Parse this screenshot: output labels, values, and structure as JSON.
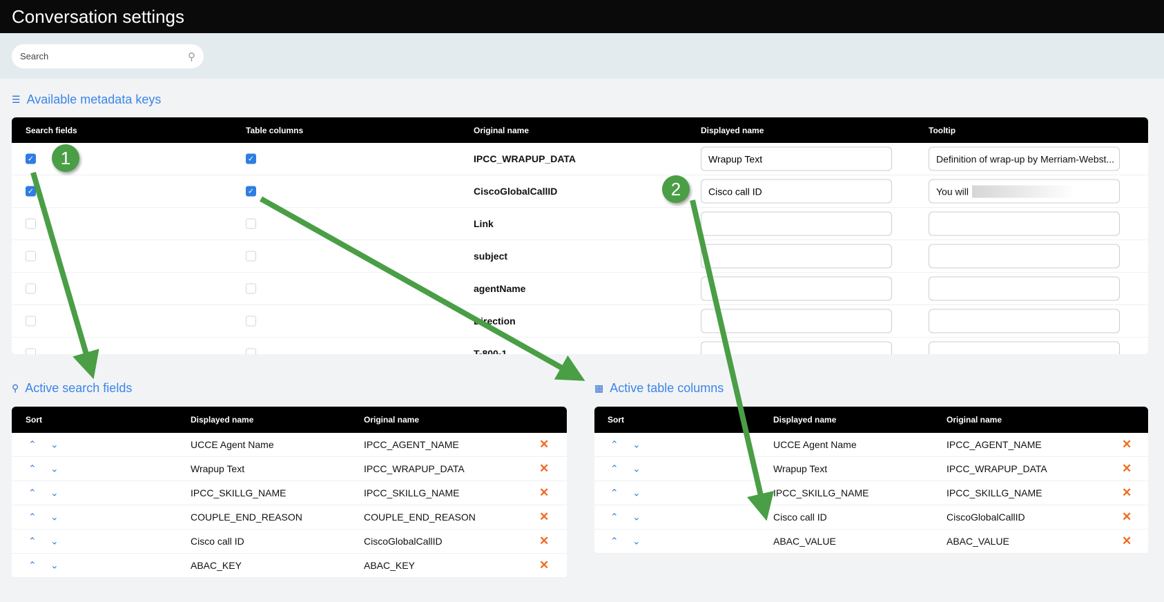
{
  "header": {
    "title": "Conversation settings"
  },
  "search": {
    "placeholder": "Search",
    "icon": "search-icon"
  },
  "metadata": {
    "title": "Available metadata keys",
    "columns": [
      "Search fields",
      "Table columns",
      "Original name",
      "Displayed name",
      "Tooltip"
    ],
    "rows": [
      {
        "search": true,
        "table": true,
        "original": "IPCC_WRAPUP_DATA",
        "displayed": "Wrapup Text",
        "tooltip": "Definition of wrap-up by Merriam-Webst..."
      },
      {
        "search": true,
        "table": true,
        "original": "CiscoGlobalCallID",
        "displayed": "Cisco call ID",
        "tooltip": "You will"
      },
      {
        "search": false,
        "table": false,
        "original": "Link",
        "displayed": "",
        "tooltip": ""
      },
      {
        "search": false,
        "table": false,
        "original": "subject",
        "displayed": "",
        "tooltip": ""
      },
      {
        "search": false,
        "table": false,
        "original": "agentName",
        "displayed": "",
        "tooltip": ""
      },
      {
        "search": false,
        "table": false,
        "original": "Direction",
        "displayed": "",
        "tooltip": ""
      },
      {
        "search": false,
        "table": false,
        "original": "T-800-1",
        "displayed": "",
        "tooltip": ""
      }
    ]
  },
  "active_search": {
    "title": "Active search fields",
    "columns": [
      "Sort",
      "Displayed name",
      "Original name"
    ],
    "rows": [
      {
        "displayed": "UCCE Agent Name",
        "original": "IPCC_AGENT_NAME"
      },
      {
        "displayed": "Wrapup Text",
        "original": "IPCC_WRAPUP_DATA"
      },
      {
        "displayed": "IPCC_SKILLG_NAME",
        "original": "IPCC_SKILLG_NAME"
      },
      {
        "displayed": "COUPLE_END_REASON",
        "original": "COUPLE_END_REASON"
      },
      {
        "displayed": "Cisco call ID",
        "original": "CiscoGlobalCallID"
      },
      {
        "displayed": "ABAC_KEY",
        "original": "ABAC_KEY"
      }
    ]
  },
  "active_table": {
    "title": "Active table columns",
    "columns": [
      "Sort",
      "Displayed name",
      "Original name"
    ],
    "rows": [
      {
        "displayed": "UCCE Agent Name",
        "original": "IPCC_AGENT_NAME"
      },
      {
        "displayed": "Wrapup Text",
        "original": "IPCC_WRAPUP_DATA"
      },
      {
        "displayed": "IPCC_SKILLG_NAME",
        "original": "IPCC_SKILLG_NAME"
      },
      {
        "displayed": "Cisco call ID",
        "original": "CiscoGlobalCallID"
      },
      {
        "displayed": "ABAC_VALUE",
        "original": "ABAC_VALUE"
      }
    ]
  },
  "annotations": {
    "badge1": "1",
    "badge2": "2",
    "color": "#4a9e45"
  },
  "colors": {
    "accent": "#3a86e8",
    "remove": "#f26a1b",
    "header": "#000000"
  }
}
